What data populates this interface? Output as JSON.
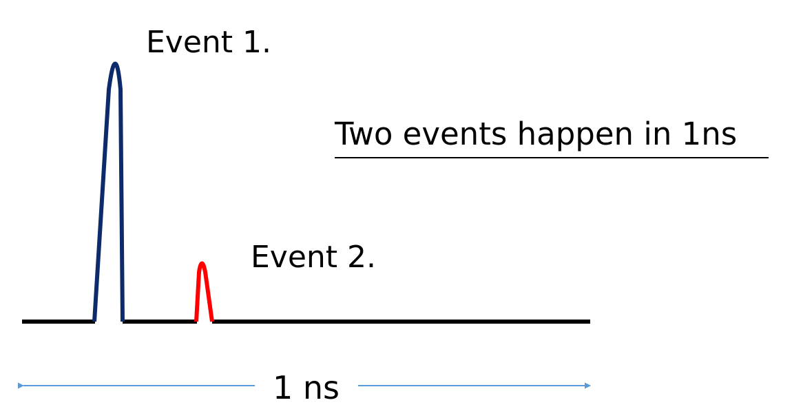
{
  "labels": {
    "event1": "Event 1.",
    "event2": "Event 2.",
    "title": "Two events happen in 1ns",
    "duration": "1 ns"
  },
  "colors": {
    "baseline": "#000000",
    "event1_pulse": "#0d2a6b",
    "event2_pulse": "#ff0000",
    "arrow": "#5b9bd5"
  }
}
